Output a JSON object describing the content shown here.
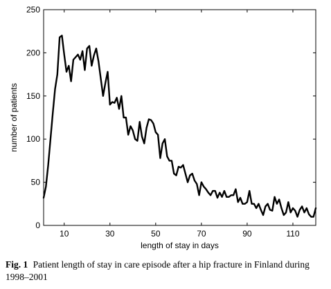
{
  "caption": {
    "label": "Fig. 1",
    "text": "Patient length of stay in care episode after a hip fracture in Finland during 1998–2001"
  },
  "chart_data": {
    "type": "line",
    "xlabel": "length of stay in days",
    "ylabel": "number of patients",
    "xlim": [
      1,
      120
    ],
    "ylim": [
      0,
      250
    ],
    "xticks": [
      10,
      30,
      50,
      70,
      90,
      110
    ],
    "yticks": [
      0,
      50,
      100,
      150,
      200,
      250
    ],
    "grid": false,
    "line_color": "#000000",
    "series": [
      {
        "x": [
          1,
          2,
          3,
          4,
          5,
          6,
          7,
          8,
          9,
          10,
          11,
          12,
          13,
          14,
          15,
          16,
          17,
          18,
          19,
          20,
          21,
          22,
          23,
          24,
          25,
          26,
          27,
          28,
          29,
          30,
          31,
          32,
          33,
          34,
          35,
          36,
          37,
          38,
          39,
          40,
          41,
          42,
          43,
          44,
          45,
          46,
          47,
          48,
          49,
          50,
          51,
          52,
          53,
          54,
          55,
          56,
          57,
          58,
          59,
          60,
          61,
          62,
          63,
          64,
          65,
          66,
          67,
          68,
          69,
          70,
          71,
          72,
          73,
          74,
          75,
          76,
          77,
          78,
          79,
          80,
          81,
          82,
          83,
          84,
          85,
          86,
          87,
          88,
          89,
          90,
          91,
          92,
          93,
          94,
          95,
          96,
          97,
          98,
          99,
          100,
          101,
          102,
          103,
          104,
          105,
          106,
          107,
          108,
          109,
          110,
          111,
          112,
          113,
          114,
          115,
          116,
          117,
          118,
          119,
          120
        ],
        "y": [
          32,
          45,
          70,
          100,
          130,
          158,
          175,
          218,
          220,
          198,
          178,
          185,
          167,
          192,
          195,
          198,
          192,
          202,
          180,
          205,
          208,
          185,
          197,
          205,
          190,
          170,
          150,
          165,
          178,
          140,
          143,
          142,
          148,
          135,
          150,
          125,
          125,
          105,
          115,
          110,
          100,
          98,
          120,
          103,
          95,
          113,
          123,
          122,
          118,
          108,
          105,
          78,
          95,
          100,
          80,
          75,
          75,
          60,
          58,
          68,
          67,
          70,
          60,
          50,
          58,
          60,
          52,
          48,
          35,
          50,
          45,
          42,
          38,
          35,
          40,
          40,
          32,
          38,
          33,
          40,
          33,
          33,
          35,
          35,
          42,
          27,
          32,
          25,
          25,
          27,
          40,
          25,
          25,
          20,
          25,
          18,
          12,
          22,
          25,
          18,
          17,
          33,
          25,
          30,
          20,
          12,
          15,
          27,
          15,
          20,
          17,
          10,
          18,
          22,
          15,
          20,
          13,
          10,
          10,
          20
        ]
      }
    ]
  }
}
